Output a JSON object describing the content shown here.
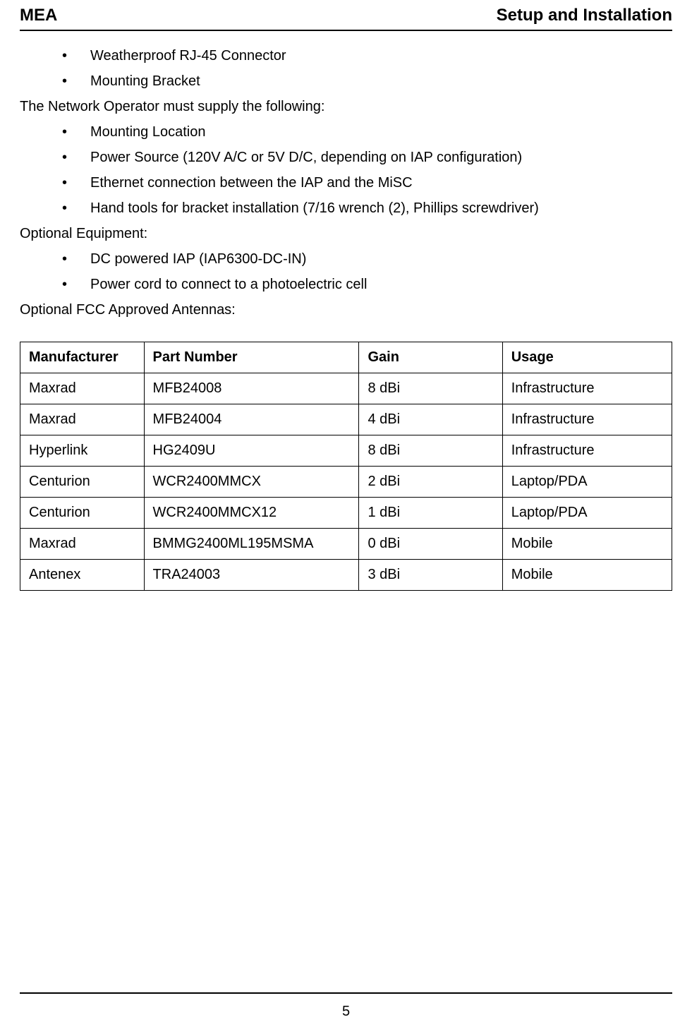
{
  "header": {
    "left": "MEA",
    "right": "Setup and Installation"
  },
  "lists": {
    "top": [
      "Weatherproof RJ-45 Connector",
      "Mounting Bracket"
    ],
    "supply_intro": "The Network Operator must supply the following:",
    "supply": [
      "Mounting Location",
      "Power Source (120V A/C or 5V D/C, depending on IAP configuration)",
      "Ethernet connection between the IAP and the MiSC",
      "Hand tools for bracket installation (7/16 wrench (2), Phillips screwdriver)"
    ],
    "optional_intro": "Optional Equipment:",
    "optional": [
      "DC powered IAP (IAP6300-DC-IN)",
      "Power cord to connect to a photoelectric cell"
    ],
    "antennas_intro": "Optional FCC Approved Antennas:"
  },
  "table": {
    "columns": [
      "Manufacturer",
      "Part Number",
      "Gain",
      "Usage"
    ],
    "rows": [
      [
        "Maxrad",
        "MFB24008",
        "8 dBi",
        "Infrastructure"
      ],
      [
        "Maxrad",
        "MFB24004",
        "4 dBi",
        "Infrastructure"
      ],
      [
        "Hyperlink",
        "HG2409U",
        "8 dBi",
        "Infrastructure"
      ],
      [
        "Centurion",
        "WCR2400MMCX",
        "2 dBi",
        "Laptop/PDA"
      ],
      [
        "Centurion",
        "WCR2400MMCX12",
        "1 dBi",
        "Laptop/PDA"
      ],
      [
        "Maxrad",
        "BMMG2400ML195MSMA",
        "0 dBi",
        "Mobile"
      ],
      [
        "Antenex",
        "TRA24003",
        "3 dBi",
        "Mobile"
      ]
    ]
  },
  "footer": {
    "page_number": "5"
  }
}
